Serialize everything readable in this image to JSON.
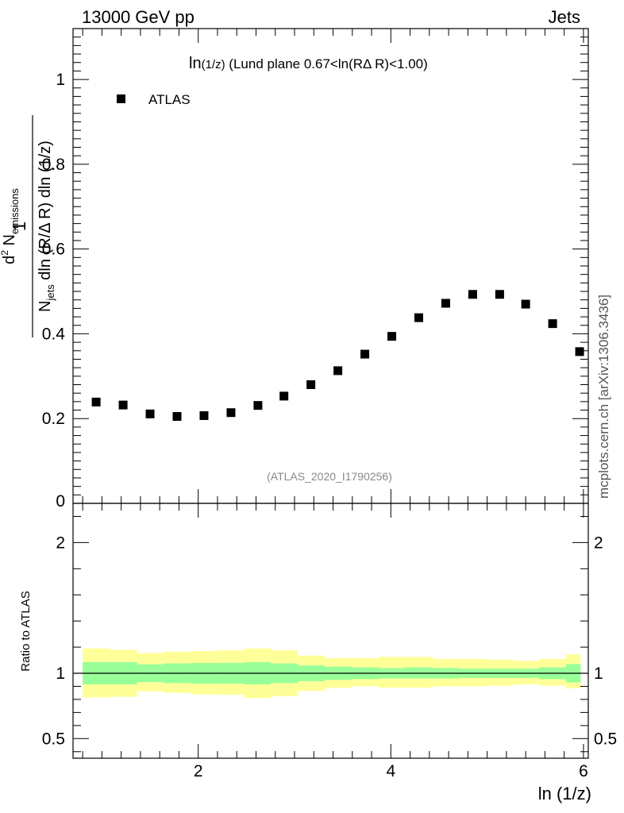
{
  "header": {
    "left": "13000 GeV pp",
    "right": "Jets"
  },
  "side_note": "mcplots.cern.ch [arXiv:1306.3436]",
  "chart_data": [
    {
      "type": "scatter",
      "title": "ln(1/z) (Lund plane 0.67<ln(RΔ R)<1.00)",
      "title_parts": {
        "main": "ln",
        "sub": "(1/z)",
        "rest": " (Lund plane 0.67<ln(RΔ R)<1.00)"
      },
      "analysis_label": "(ATLAS_2020_I1790256)",
      "ylabel": {
        "one": "1",
        "d2": "d",
        "sup2": "2",
        "N": "N",
        "emissions": "emissions",
        "Njets": "N",
        "jets": "jets",
        "rest": "dln (R/Δ R) dln (1/z)"
      },
      "xlim": [
        0.7,
        6.05
      ],
      "ylim": [
        0,
        1.12
      ],
      "yticks": [
        0.2,
        0.4,
        0.6,
        0.8,
        1
      ],
      "ytick_labels": [
        "0.2",
        "0.4",
        "0.6",
        "0.8",
        "1"
      ],
      "y_zero_label": "0",
      "legend": {
        "label": "ATLAS",
        "position": "top-left"
      },
      "series": [
        {
          "name": "ATLAS",
          "x": [
            0.94,
            1.22,
            1.5,
            1.78,
            2.06,
            2.34,
            2.62,
            2.89,
            3.17,
            3.45,
            3.73,
            4.01,
            4.29,
            4.57,
            4.85,
            5.13,
            5.4,
            5.68,
            5.96
          ],
          "y": [
            0.239,
            0.232,
            0.211,
            0.205,
            0.207,
            0.214,
            0.231,
            0.253,
            0.28,
            0.313,
            0.352,
            0.394,
            0.438,
            0.472,
            0.493,
            0.493,
            0.47,
            0.424,
            0.358
          ]
        }
      ]
    },
    {
      "type": "area",
      "ylabel": "Ratio to ATLAS",
      "xlabel": "ln (1/z)",
      "xlim": [
        0.7,
        6.05
      ],
      "ylim": [
        0.35,
        2.3
      ],
      "yticks": [
        0.5,
        1,
        2
      ],
      "ytick_labels": [
        "0.5",
        "1",
        "2"
      ],
      "xticks": [
        2,
        4,
        6
      ],
      "xtick_labels": [
        "2",
        "4",
        "6"
      ],
      "reference_line": 1,
      "bin_edges": [
        0.8,
        1.08,
        1.36,
        1.64,
        1.92,
        2.2,
        2.48,
        2.75,
        3.03,
        3.31,
        3.59,
        3.87,
        4.15,
        4.43,
        4.71,
        4.99,
        5.27,
        5.54,
        5.82,
        6.1
      ],
      "bands": {
        "inner": {
          "color": "#99ff99",
          "low": [
            0.915,
            0.915,
            0.932,
            0.925,
            0.92,
            0.92,
            0.915,
            0.925,
            0.94,
            0.95,
            0.955,
            0.96,
            0.96,
            0.96,
            0.965,
            0.965,
            0.965,
            0.955,
            0.93
          ],
          "high": [
            1.085,
            1.085,
            1.068,
            1.075,
            1.078,
            1.08,
            1.085,
            1.075,
            1.06,
            1.05,
            1.045,
            1.04,
            1.045,
            1.04,
            1.035,
            1.035,
            1.035,
            1.045,
            1.07
          ]
        },
        "outer": {
          "color": "#ffff99",
          "low": [
            0.815,
            0.82,
            0.862,
            0.85,
            0.838,
            0.835,
            0.81,
            0.825,
            0.865,
            0.888,
            0.9,
            0.89,
            0.89,
            0.9,
            0.9,
            0.905,
            0.915,
            0.905,
            0.885
          ],
          "high": [
            1.19,
            1.18,
            1.155,
            1.165,
            1.17,
            1.175,
            1.19,
            1.175,
            1.135,
            1.115,
            1.115,
            1.125,
            1.125,
            1.11,
            1.11,
            1.105,
            1.095,
            1.11,
            1.145
          ]
        }
      }
    }
  ]
}
